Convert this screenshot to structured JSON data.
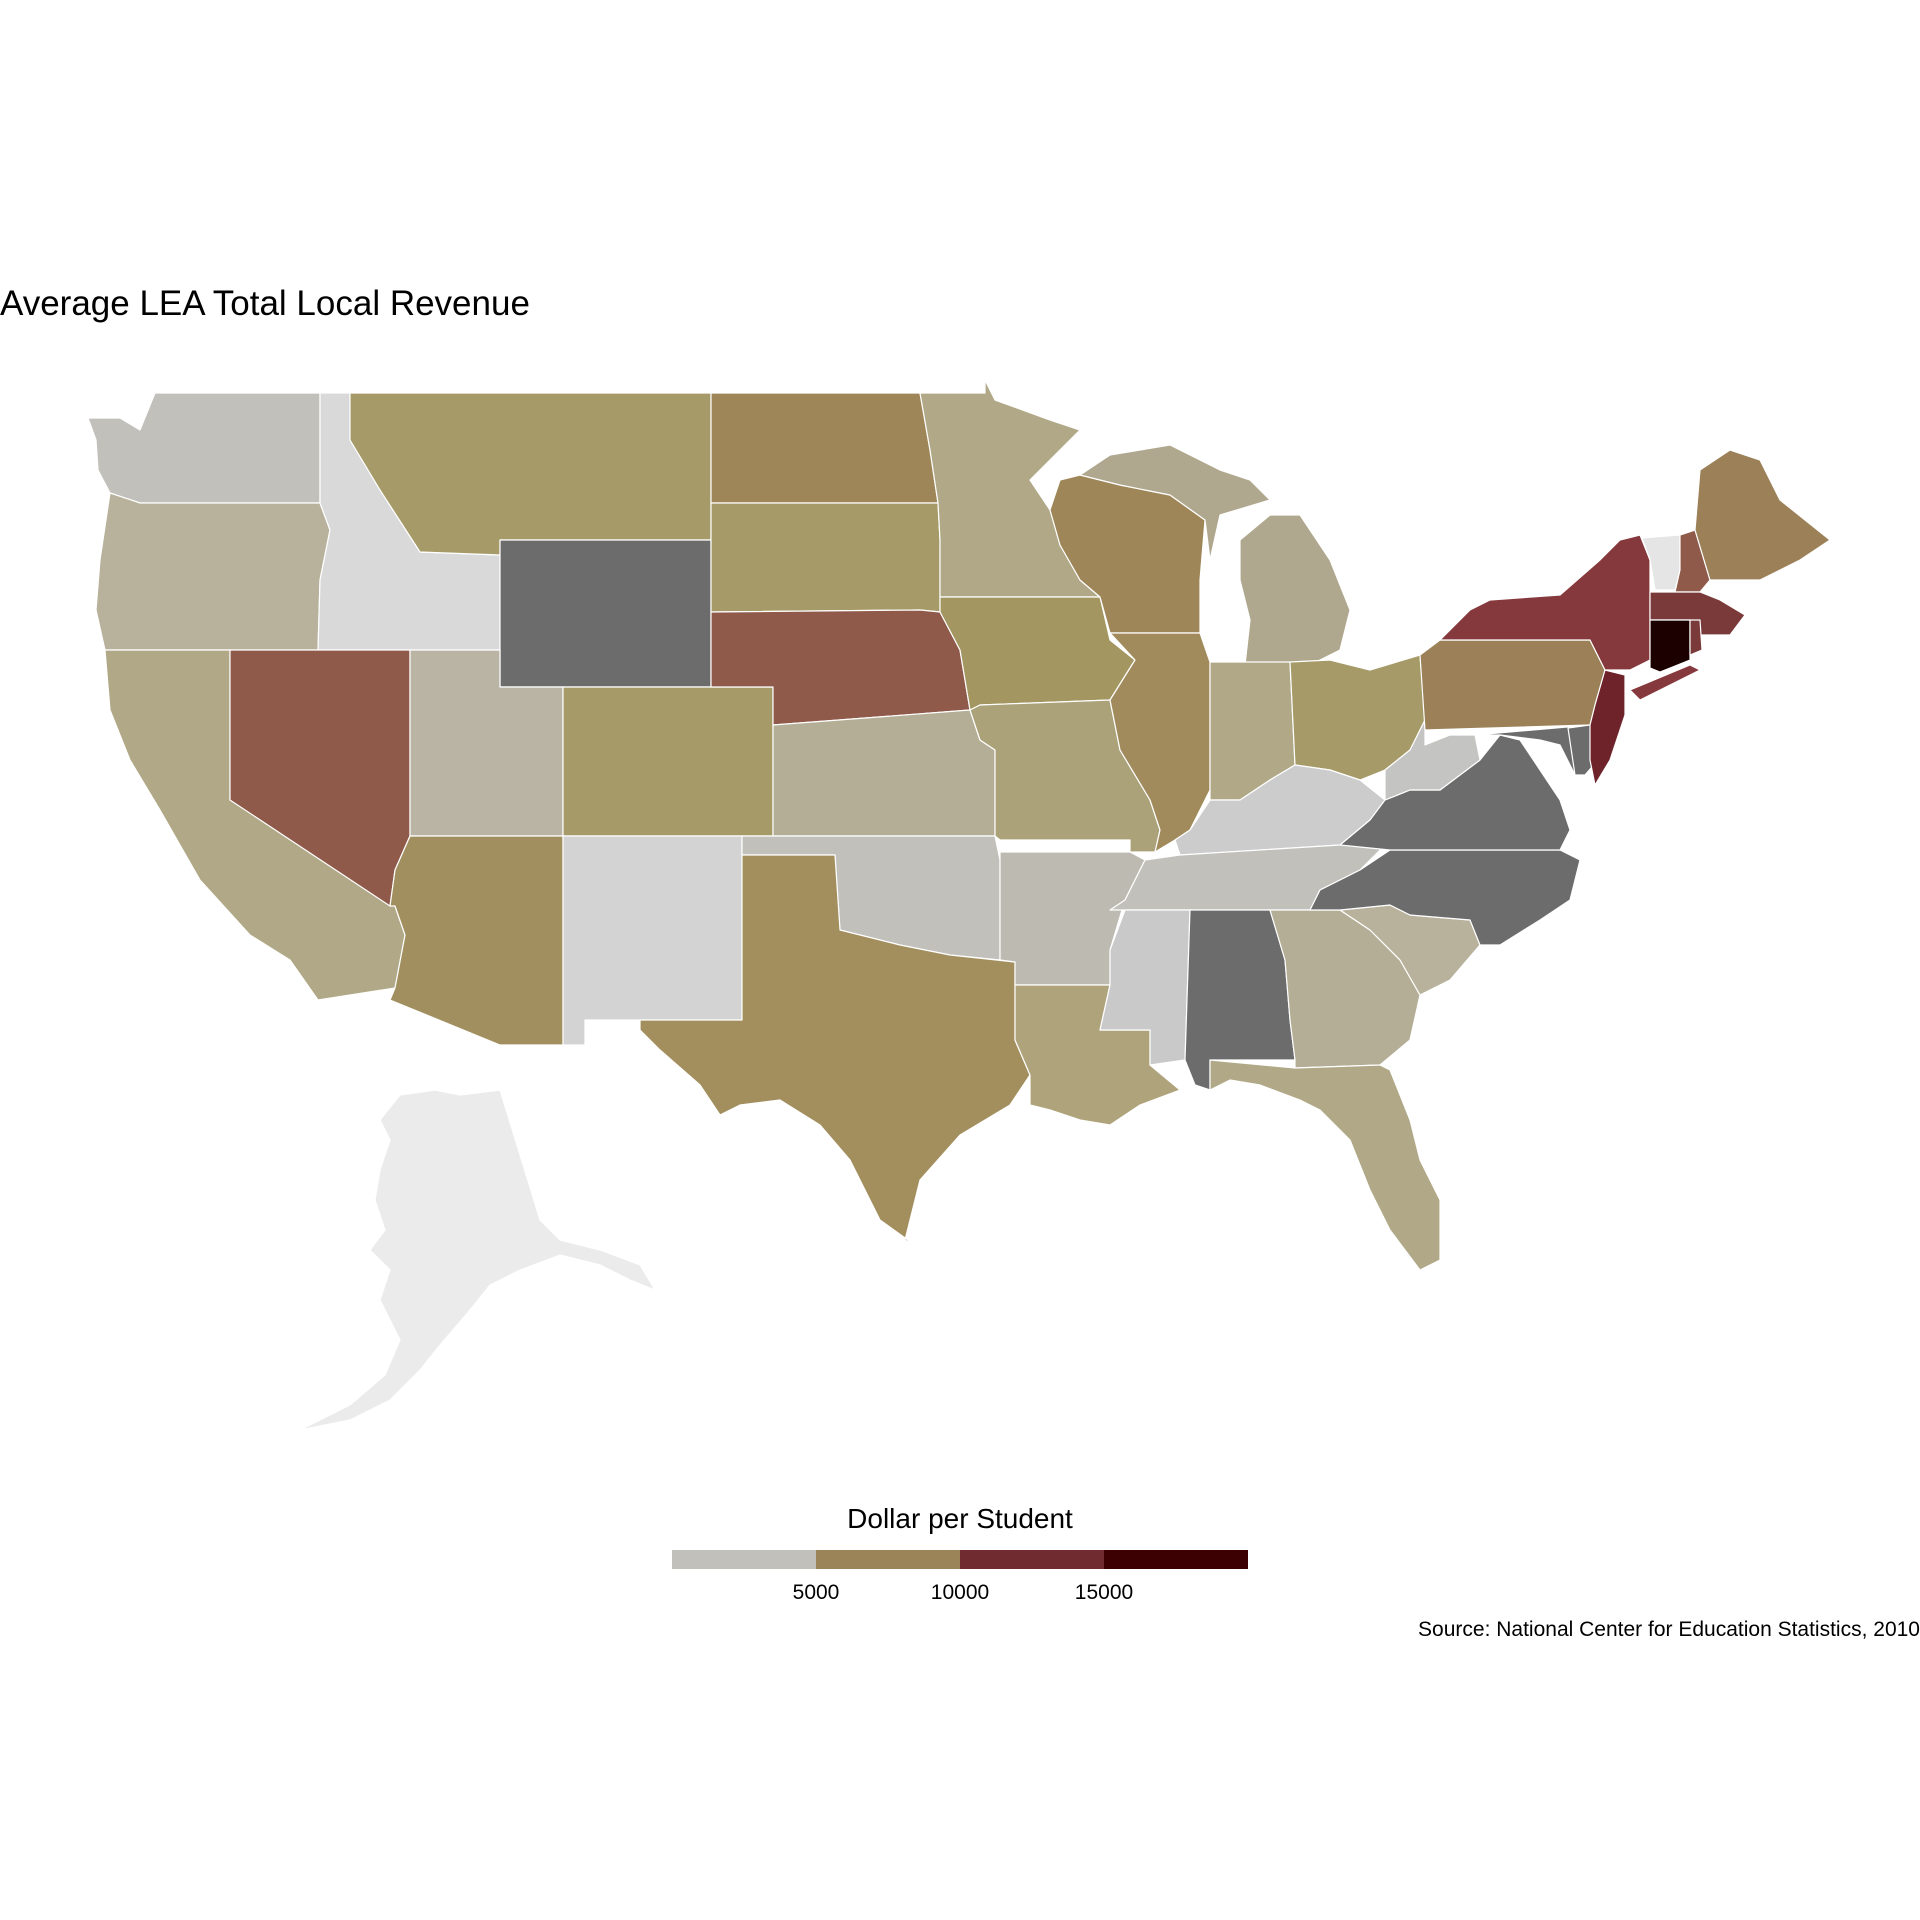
{
  "title": "Average LEA Total Local Revenue",
  "legend": {
    "title": "Dollar per Student",
    "ticks": [
      "5000",
      "10000",
      "15000"
    ],
    "colors": [
      "#c1c0bb",
      "#9b8458",
      "#6f2b30",
      "#3c0003"
    ]
  },
  "source": "Source: National Center for Education Statistics, 2010",
  "state_colors": {
    "WA": "#c1c0bb",
    "OR": "#b8b29c",
    "CA": "#b0a886",
    "ID": "#d9d9d9",
    "NV": "#8f5a4a",
    "MT": "#a69a68",
    "WY": "#6c6c6c",
    "UT": "#bab4a4",
    "AZ": "#a18f5f",
    "CO": "#a69a68",
    "NM": "#d3d3d3",
    "ND": "#9e8658",
    "SD": "#a69a68",
    "NE": "#8f5a4a",
    "KS": "#b5ae96",
    "OK": "#c1c0bb",
    "TX": "#a38f5e",
    "MN": "#b0a886",
    "IA": "#a39660",
    "MO": "#aba27a",
    "AR": "#bdbab2",
    "LA": "#afa37b",
    "WI": "#9e8658",
    "IL": "#a18b5c",
    "MI": "#b0a88e",
    "IN": "#b0a886",
    "OH": "#a69a68",
    "KY": "#cccccc",
    "TN": "#c1c0bb",
    "MS": "#c9c9c9",
    "AL": "#6c6c6c",
    "GA": "#b5ae96",
    "FL": "#b0a886",
    "SC": "#b8b29c",
    "NC": "#6c6c6c",
    "VA": "#6c6c6c",
    "WV": "#c4c4c2",
    "PA": "#9b8058",
    "NY": "#85393c",
    "NJ": "#6e2229",
    "DE": "#6c6c6c",
    "MD": "#6c6c6c",
    "CT": "#1c0000",
    "RI": "#7b3a3a",
    "MA": "#7b3a3a",
    "VT": "#e5e5e5",
    "NH": "#8f5a4a",
    "ME": "#9b8058",
    "AK": "#ebebeb"
  }
}
